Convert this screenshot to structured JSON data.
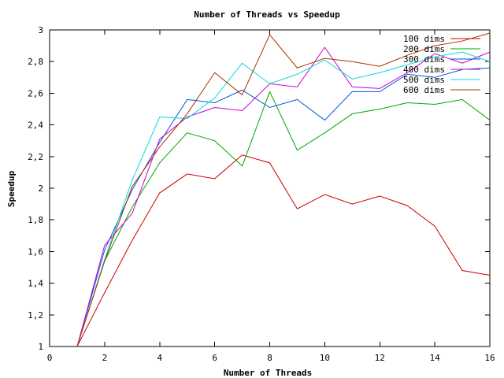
{
  "chart_data": {
    "type": "line",
    "title": "Number of Threads vs Speedup",
    "xlabel": "Number of Threads",
    "ylabel": "Speedup",
    "xlim": [
      0,
      16
    ],
    "ylim": [
      1,
      3
    ],
    "xticks": [
      0,
      2,
      4,
      6,
      8,
      10,
      12,
      14,
      16
    ],
    "xtick_labels": [
      "0",
      "2",
      "4",
      "6",
      "8",
      "10",
      "12",
      "14",
      "16"
    ],
    "yticks": [
      1,
      1.2,
      1.4,
      1.6,
      1.8,
      2,
      2.2,
      2.4,
      2.6,
      2.8,
      3
    ],
    "ytick_labels": [
      "1",
      "1,2",
      "1,4",
      "1,6",
      "1,8",
      "2",
      "2,2",
      "2,4",
      "2,6",
      "2,8",
      "3"
    ],
    "grid": false,
    "legend_position": "top-right",
    "x": [
      1,
      2,
      3,
      4,
      5,
      6,
      7,
      8,
      9,
      10,
      11,
      12,
      13,
      14,
      15,
      16
    ],
    "series": [
      {
        "name": "100 dims",
        "color": "#cc0000",
        "values": [
          1.0,
          1.34,
          1.67,
          1.97,
          2.09,
          2.06,
          2.21,
          2.16,
          1.87,
          1.96,
          1.9,
          1.95,
          1.89,
          1.76,
          1.48,
          1.45
        ]
      },
      {
        "name": "200 dims",
        "color": "#00aa00",
        "values": [
          1.0,
          1.54,
          1.88,
          2.16,
          2.35,
          2.3,
          2.14,
          2.61,
          2.24,
          2.35,
          2.47,
          2.5,
          2.54,
          2.53,
          2.56,
          2.43
        ]
      },
      {
        "name": "300 dims",
        "color": "#0055dd",
        "values": [
          1.0,
          1.61,
          1.99,
          2.29,
          2.56,
          2.54,
          2.62,
          2.51,
          2.56,
          2.43,
          2.61,
          2.61,
          2.72,
          2.7,
          2.75,
          2.76
        ]
      },
      {
        "name": "400 dims",
        "color": "#cc00cc",
        "values": [
          1.0,
          1.64,
          1.84,
          2.31,
          2.45,
          2.51,
          2.49,
          2.66,
          2.64,
          2.89,
          2.64,
          2.63,
          2.73,
          2.85,
          2.79,
          2.86
        ]
      },
      {
        "name": "500 dims",
        "color": "#00dddd",
        "values": [
          1.0,
          1.55,
          2.05,
          2.45,
          2.44,
          2.57,
          2.79,
          2.66,
          2.72,
          2.81,
          2.69,
          2.73,
          2.78,
          2.83,
          2.86,
          2.8
        ]
      },
      {
        "name": "600 dims",
        "color": "#aa3300",
        "values": [
          1.0,
          1.54,
          2.01,
          2.26,
          2.47,
          2.73,
          2.59,
          2.97,
          2.76,
          2.82,
          2.8,
          2.77,
          2.84,
          2.9,
          2.93,
          2.98
        ]
      }
    ]
  }
}
